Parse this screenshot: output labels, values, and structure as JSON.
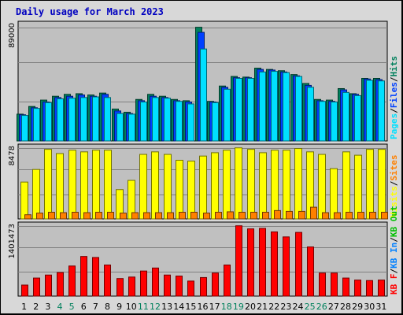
{
  "title": "Daily usage for March 2023",
  "colors": {
    "hits": "#00805c",
    "files": "#0040ff",
    "pages": "#00e0ff",
    "visits": "#ffff00",
    "sites": "#ff8000",
    "kb_f": "#ff0000",
    "kb_in": "#0080ff",
    "kb_out": "#00c000",
    "weekend_label": "#00805c",
    "weekday_label": "#000000",
    "sep": "#000000"
  },
  "chart_data": [
    {
      "type": "bar",
      "panel": "top",
      "ymax_label": "89000",
      "ylim": [
        0,
        89000
      ],
      "legend": [
        {
          "text": "Pages",
          "color_key": "pages"
        },
        {
          "text": "Files",
          "color_key": "files"
        },
        {
          "text": "Hits",
          "color_key": "hits"
        }
      ],
      "legend_separator": "/",
      "categories": [
        "1",
        "2",
        "3",
        "4",
        "5",
        "6",
        "7",
        "8",
        "9",
        "10",
        "11",
        "12",
        "13",
        "14",
        "15",
        "16",
        "17",
        "18",
        "19",
        "20",
        "21",
        "22",
        "23",
        "24",
        "25",
        "26",
        "27",
        "28",
        "29",
        "30",
        "31"
      ],
      "weekend_days": [
        "4",
        "5",
        "11",
        "12",
        "18",
        "19",
        "25",
        "26"
      ],
      "series": [
        {
          "name": "Hits",
          "color_key": "hits",
          "values": [
            21000,
            27000,
            32000,
            35000,
            36500,
            37000,
            36000,
            37500,
            25000,
            22500,
            32500,
            36500,
            35000,
            32500,
            31500,
            89000,
            31000,
            43000,
            50500,
            50000,
            57000,
            56000,
            55000,
            52000,
            45000,
            32500,
            32000,
            41000,
            37000,
            49000,
            49000
          ]
        },
        {
          "name": "Files",
          "color_key": "files",
          "values": [
            20500,
            26000,
            30500,
            34000,
            35000,
            36000,
            35000,
            36500,
            23500,
            21500,
            31500,
            35000,
            34000,
            31500,
            30500,
            85000,
            30500,
            42000,
            49500,
            49500,
            56000,
            55500,
            54000,
            51000,
            43500,
            31500,
            31000,
            40000,
            36500,
            48500,
            48000
          ]
        },
        {
          "name": "Pages",
          "color_key": "pages",
          "values": [
            20000,
            25500,
            30000,
            33000,
            33500,
            34000,
            34500,
            34000,
            21500,
            21000,
            30500,
            34000,
            33500,
            31000,
            29000,
            72000,
            30000,
            40500,
            49000,
            49000,
            54000,
            54500,
            53500,
            50500,
            42000,
            31000,
            30500,
            38000,
            35500,
            47500,
            47000
          ]
        }
      ]
    },
    {
      "type": "bar",
      "panel": "middle",
      "ymax_label": "8478",
      "ylim": [
        0,
        8478
      ],
      "legend": [
        {
          "text": "Visits",
          "color_key": "visits"
        },
        {
          "text": "Sites",
          "color_key": "sites"
        }
      ],
      "legend_separator": "/",
      "categories": [
        "1",
        "2",
        "3",
        "4",
        "5",
        "6",
        "7",
        "8",
        "9",
        "10",
        "11",
        "12",
        "13",
        "14",
        "15",
        "16",
        "17",
        "18",
        "19",
        "20",
        "21",
        "22",
        "23",
        "24",
        "25",
        "26",
        "27",
        "28",
        "29",
        "30",
        "31"
      ],
      "series": [
        {
          "name": "Visits",
          "color_key": "visits",
          "values": [
            4400,
            5900,
            8300,
            7800,
            8200,
            8000,
            8200,
            8200,
            3500,
            4600,
            7700,
            8000,
            7700,
            7000,
            6900,
            7500,
            7900,
            8200,
            8478,
            8300,
            7900,
            8200,
            8200,
            8400,
            8000,
            7700,
            6000,
            8000,
            7600,
            8300,
            8300
          ]
        },
        {
          "name": "Sites",
          "color_key": "sites",
          "values": [
            500,
            700,
            800,
            750,
            800,
            750,
            800,
            800,
            700,
            750,
            750,
            750,
            750,
            800,
            800,
            700,
            800,
            850,
            800,
            800,
            800,
            1000,
            900,
            900,
            1400,
            750,
            750,
            800,
            800,
            800,
            800
          ]
        }
      ]
    },
    {
      "type": "bar",
      "panel": "bottom",
      "ymax_label": "1401473",
      "ylim": [
        0,
        1401473
      ],
      "legend": [
        {
          "text": "KB F",
          "color_key": "kb_f"
        },
        {
          "text": "KB In",
          "color_key": "kb_in"
        },
        {
          "text": "KB Out",
          "color_key": "kb_out"
        }
      ],
      "legend_separator": "/",
      "categories": [
        "1",
        "2",
        "3",
        "4",
        "5",
        "6",
        "7",
        "8",
        "9",
        "10",
        "11",
        "12",
        "13",
        "14",
        "15",
        "16",
        "17",
        "18",
        "19",
        "20",
        "21",
        "22",
        "23",
        "24",
        "25",
        "26",
        "27",
        "28",
        "29",
        "30",
        "31"
      ],
      "series": [
        {
          "name": "KB F",
          "color_key": "kb_f",
          "values": [
            220000,
            360000,
            420000,
            470000,
            600000,
            790000,
            770000,
            620000,
            350000,
            380000,
            500000,
            560000,
            420000,
            400000,
            300000,
            370000,
            460000,
            620000,
            1401473,
            1340000,
            1350000,
            1280000,
            1180000,
            1270000,
            980000,
            460000,
            460000,
            360000,
            320000,
            310000,
            320000
          ]
        }
      ]
    }
  ]
}
